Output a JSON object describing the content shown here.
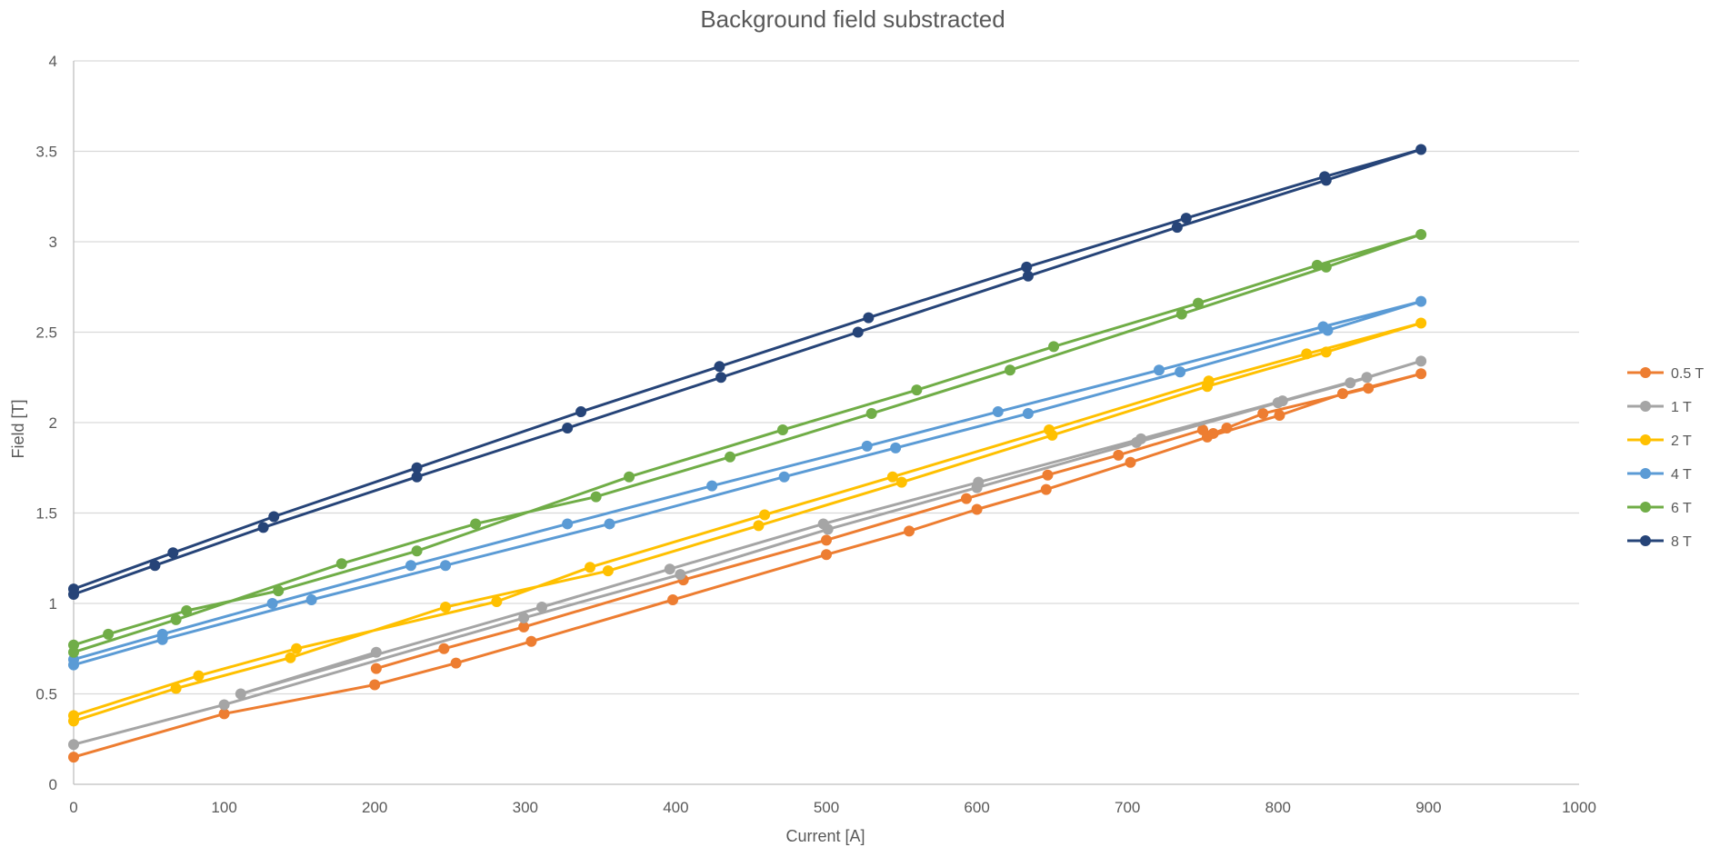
{
  "chart_data": {
    "type": "line",
    "title": "Background field substracted",
    "xlabel": "Current [A]",
    "ylabel": "Field [T]",
    "xlim": [
      0,
      1000
    ],
    "ylim": [
      0,
      4
    ],
    "xticks": [
      0,
      100,
      200,
      300,
      400,
      500,
      600,
      700,
      800,
      900,
      1000
    ],
    "yticks": [
      0,
      0.5,
      1,
      1.5,
      2,
      2.5,
      3,
      3.5,
      4
    ],
    "grid": "horizontal",
    "legend_position": "right",
    "series": [
      {
        "name": "0.5 T",
        "color": "#ED7D31",
        "points": [
          [
            0,
            0.15
          ],
          [
            100,
            0.39
          ],
          [
            200,
            0.55
          ],
          [
            254,
            0.67
          ],
          [
            304,
            0.79
          ],
          [
            398,
            1.02
          ],
          [
            500,
            1.27
          ],
          [
            555,
            1.4
          ],
          [
            600,
            1.52
          ],
          [
            646,
            1.63
          ],
          [
            702,
            1.78
          ],
          [
            753,
            1.92
          ],
          [
            801,
            2.04
          ],
          [
            843,
            2.16
          ],
          [
            895,
            2.27
          ],
          [
            860,
            2.19
          ],
          [
            790,
            2.05
          ],
          [
            766,
            1.97
          ],
          [
            757,
            1.94
          ],
          [
            750,
            1.96
          ],
          [
            694,
            1.82
          ],
          [
            647,
            1.71
          ],
          [
            593,
            1.58
          ],
          [
            500,
            1.35
          ],
          [
            405,
            1.13
          ],
          [
            299,
            0.87
          ],
          [
            246,
            0.75
          ],
          [
            201,
            0.64
          ]
        ]
      },
      {
        "name": "1 T",
        "color": "#A5A5A5",
        "points": [
          [
            0,
            0.22
          ],
          [
            100,
            0.44
          ],
          [
            299,
            0.92
          ],
          [
            403,
            1.16
          ],
          [
            501,
            1.41
          ],
          [
            600,
            1.64
          ],
          [
            706,
            1.89
          ],
          [
            800,
            2.11
          ],
          [
            848,
            2.22
          ],
          [
            895,
            2.34
          ],
          [
            859,
            2.25
          ],
          [
            803,
            2.12
          ],
          [
            709,
            1.91
          ],
          [
            601,
            1.67
          ],
          [
            498,
            1.44
          ],
          [
            396,
            1.19
          ],
          [
            311,
            0.98
          ],
          [
            111,
            0.5
          ],
          [
            201,
            0.73
          ]
        ]
      },
      {
        "name": "2 T",
        "color": "#FFC000",
        "points": [
          [
            0,
            0.35
          ],
          [
            68,
            0.53
          ],
          [
            144,
            0.7
          ],
          [
            247,
            0.98
          ],
          [
            355,
            1.18
          ],
          [
            455,
            1.43
          ],
          [
            550,
            1.67
          ],
          [
            650,
            1.93
          ],
          [
            753,
            2.2
          ],
          [
            832,
            2.39
          ],
          [
            895,
            2.55
          ],
          [
            819,
            2.38
          ],
          [
            754,
            2.23
          ],
          [
            648,
            1.96
          ],
          [
            544,
            1.7
          ],
          [
            459,
            1.49
          ],
          [
            343,
            1.2
          ],
          [
            281,
            1.01
          ],
          [
            148,
            0.75
          ],
          [
            83,
            0.6
          ],
          [
            0,
            0.38
          ]
        ]
      },
      {
        "name": "4 T",
        "color": "#5B9BD5",
        "points": [
          [
            0,
            0.66
          ],
          [
            59,
            0.8
          ],
          [
            158,
            1.02
          ],
          [
            247,
            1.21
          ],
          [
            356,
            1.44
          ],
          [
            472,
            1.7
          ],
          [
            546,
            1.86
          ],
          [
            634,
            2.05
          ],
          [
            735,
            2.28
          ],
          [
            833,
            2.51
          ],
          [
            895,
            2.67
          ],
          [
            830,
            2.53
          ],
          [
            721,
            2.29
          ],
          [
            614,
            2.06
          ],
          [
            527,
            1.87
          ],
          [
            424,
            1.65
          ],
          [
            328,
            1.44
          ],
          [
            224,
            1.21
          ],
          [
            132,
            1.0
          ],
          [
            59,
            0.83
          ],
          [
            0,
            0.69
          ]
        ]
      },
      {
        "name": "6 T",
        "color": "#70AD47",
        "points": [
          [
            0,
            0.73
          ],
          [
            68,
            0.91
          ],
          [
            178,
            1.22
          ],
          [
            267,
            1.44
          ],
          [
            347,
            1.59
          ],
          [
            436,
            1.81
          ],
          [
            530,
            2.05
          ],
          [
            622,
            2.29
          ],
          [
            736,
            2.6
          ],
          [
            832,
            2.86
          ],
          [
            895,
            3.04
          ],
          [
            826,
            2.87
          ],
          [
            747,
            2.66
          ],
          [
            651,
            2.42
          ],
          [
            560,
            2.18
          ],
          [
            471,
            1.96
          ],
          [
            369,
            1.7
          ],
          [
            228,
            1.29
          ],
          [
            136,
            1.07
          ],
          [
            75,
            0.96
          ],
          [
            23,
            0.83
          ],
          [
            0,
            0.77
          ]
        ]
      },
      {
        "name": "8 T",
        "color": "#264478",
        "points": [
          [
            0,
            1.05
          ],
          [
            54,
            1.21
          ],
          [
            126,
            1.42
          ],
          [
            228,
            1.7
          ],
          [
            328,
            1.97
          ],
          [
            430,
            2.25
          ],
          [
            521,
            2.5
          ],
          [
            634,
            2.81
          ],
          [
            733,
            3.08
          ],
          [
            832,
            3.34
          ],
          [
            895,
            3.51
          ],
          [
            831,
            3.36
          ],
          [
            739,
            3.13
          ],
          [
            633,
            2.86
          ],
          [
            528,
            2.58
          ],
          [
            429,
            2.31
          ],
          [
            337,
            2.06
          ],
          [
            228,
            1.75
          ],
          [
            133,
            1.48
          ],
          [
            66,
            1.28
          ],
          [
            0,
            1.08
          ]
        ]
      }
    ]
  }
}
